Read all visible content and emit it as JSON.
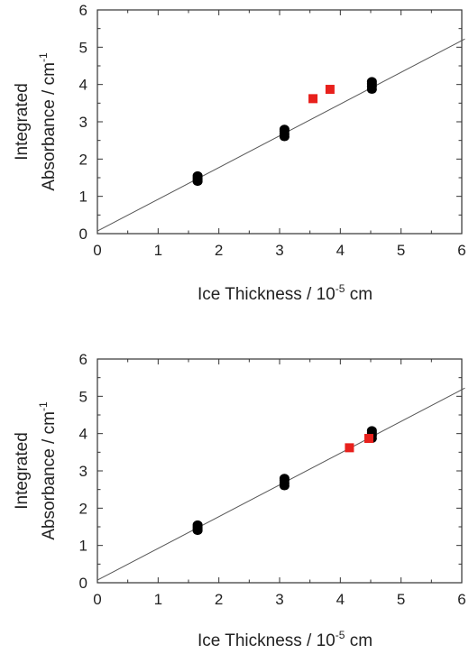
{
  "chart_data": [
    {
      "type": "scatter",
      "xlabel": "Ice Thickness / 10",
      "xlabel_exponent": "-5",
      "xlabel_unit": " cm",
      "ylabel_line1": "Integrated",
      "ylabel_line2": "Absorbance / cm",
      "ylabel_exponent": "-1",
      "xlim": [
        0,
        6
      ],
      "ylim": [
        0,
        6
      ],
      "xticks": [
        "0",
        "1",
        "2",
        "3",
        "4",
        "5",
        "6"
      ],
      "yticks": [
        "0",
        "1",
        "2",
        "3",
        "4",
        "5",
        "6"
      ],
      "grid": false,
      "series": [
        {
          "marker": "circle",
          "color": "#000000",
          "points": [
            [
              1.65,
              1.4
            ],
            [
              1.65,
              1.45
            ],
            [
              1.65,
              1.5
            ],
            [
              1.65,
              1.55
            ],
            [
              3.08,
              2.6
            ],
            [
              3.08,
              2.67
            ],
            [
              3.08,
              2.75
            ],
            [
              3.08,
              2.8
            ],
            [
              4.52,
              3.87
            ],
            [
              4.52,
              3.95
            ],
            [
              4.52,
              4.02
            ],
            [
              4.52,
              4.08
            ]
          ]
        },
        {
          "marker": "square",
          "color": "#e8201c",
          "points": [
            [
              3.55,
              3.62
            ],
            [
              3.83,
              3.87
            ]
          ]
        }
      ],
      "fit_line": {
        "x": [
          0,
          6.05
        ],
        "y": [
          0.07,
          5.22
        ],
        "color": "#555555"
      }
    },
    {
      "type": "scatter",
      "xlabel": "Ice Thickness / 10",
      "xlabel_exponent": "-5",
      "xlabel_unit": " cm",
      "ylabel_line1": "Integrated",
      "ylabel_line2": "Absorbance / cm",
      "ylabel_exponent": "-1",
      "xlim": [
        0,
        6
      ],
      "ylim": [
        0,
        6
      ],
      "xticks": [
        "0",
        "1",
        "2",
        "3",
        "4",
        "5",
        "6"
      ],
      "yticks": [
        "0",
        "1",
        "2",
        "3",
        "4",
        "5",
        "6"
      ],
      "grid": false,
      "series": [
        {
          "marker": "circle",
          "color": "#000000",
          "points": [
            [
              1.65,
              1.4
            ],
            [
              1.65,
              1.45
            ],
            [
              1.65,
              1.5
            ],
            [
              1.65,
              1.55
            ],
            [
              3.08,
              2.6
            ],
            [
              3.08,
              2.67
            ],
            [
              3.08,
              2.75
            ],
            [
              3.08,
              2.8
            ],
            [
              4.52,
              3.87
            ],
            [
              4.52,
              3.95
            ],
            [
              4.52,
              4.02
            ],
            [
              4.52,
              4.08
            ]
          ]
        },
        {
          "marker": "square",
          "color": "#e8201c",
          "points": [
            [
              4.15,
              3.62
            ],
            [
              4.47,
              3.87
            ]
          ]
        }
      ],
      "fit_line": {
        "x": [
          0,
          6.05
        ],
        "y": [
          0.07,
          5.22
        ],
        "color": "#555555"
      }
    }
  ]
}
